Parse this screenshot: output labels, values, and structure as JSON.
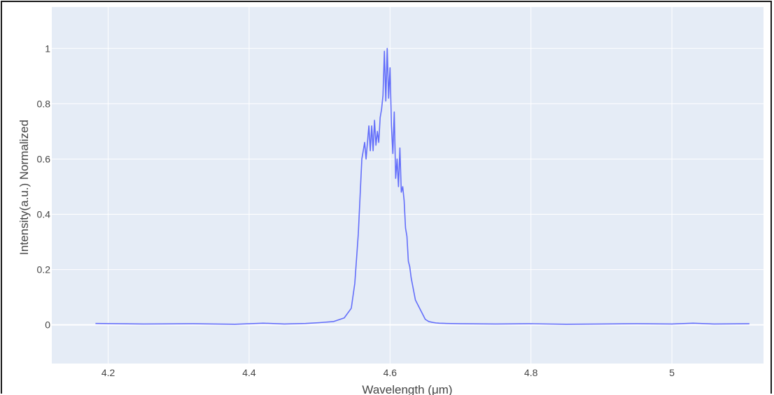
{
  "chart_data": {
    "type": "line",
    "title": "",
    "xlabel": "Wavelength (μm)",
    "ylabel": "Intensity(a.u.) Normalized",
    "xlim": [
      4.12,
      5.13
    ],
    "ylim": [
      -0.14,
      1.15
    ],
    "x_ticks": [
      "4.2",
      "4.4",
      "4.6",
      "4.8",
      "5"
    ],
    "y_ticks": [
      "0",
      "0.2",
      "0.4",
      "0.6",
      "0.8",
      "1"
    ],
    "grid": true,
    "legend": "none",
    "colors": {
      "plot_bg": "#e5ecf6",
      "grid": "#ffffff",
      "line": "#636efa"
    },
    "series": [
      {
        "x": [
          4.182,
          4.25,
          4.32,
          4.38,
          4.42,
          4.45,
          4.48,
          4.5,
          4.52,
          4.535,
          4.545,
          4.55,
          4.555,
          4.56,
          4.564,
          4.566,
          4.568,
          4.57,
          4.572,
          4.574,
          4.576,
          4.578,
          4.58,
          4.582,
          4.584,
          4.586,
          4.588,
          4.59,
          4.592,
          4.594,
          4.596,
          4.598,
          4.6,
          4.602,
          4.604,
          4.606,
          4.608,
          4.61,
          4.612,
          4.614,
          4.616,
          4.618,
          4.62,
          4.622,
          4.624,
          4.626,
          4.628,
          4.63,
          4.633,
          4.636,
          4.64,
          4.645,
          4.65,
          4.655,
          4.66,
          4.665,
          4.67,
          4.68,
          4.7,
          4.75,
          4.8,
          4.85,
          4.9,
          4.95,
          5.0,
          5.03,
          5.06,
          5.11
        ],
        "y": [
          0.005,
          0.003,
          0.004,
          0.002,
          0.006,
          0.003,
          0.005,
          0.008,
          0.012,
          0.025,
          0.06,
          0.15,
          0.33,
          0.6,
          0.66,
          0.6,
          0.66,
          0.72,
          0.63,
          0.72,
          0.63,
          0.74,
          0.65,
          0.7,
          0.66,
          0.75,
          0.78,
          0.83,
          0.99,
          0.81,
          1.0,
          0.82,
          0.93,
          0.72,
          0.62,
          0.77,
          0.53,
          0.6,
          0.5,
          0.64,
          0.48,
          0.5,
          0.45,
          0.35,
          0.32,
          0.23,
          0.21,
          0.17,
          0.13,
          0.09,
          0.07,
          0.045,
          0.02,
          0.012,
          0.009,
          0.007,
          0.006,
          0.005,
          0.004,
          0.003,
          0.004,
          0.002,
          0.003,
          0.004,
          0.003,
          0.006,
          0.003,
          0.004
        ]
      }
    ]
  }
}
